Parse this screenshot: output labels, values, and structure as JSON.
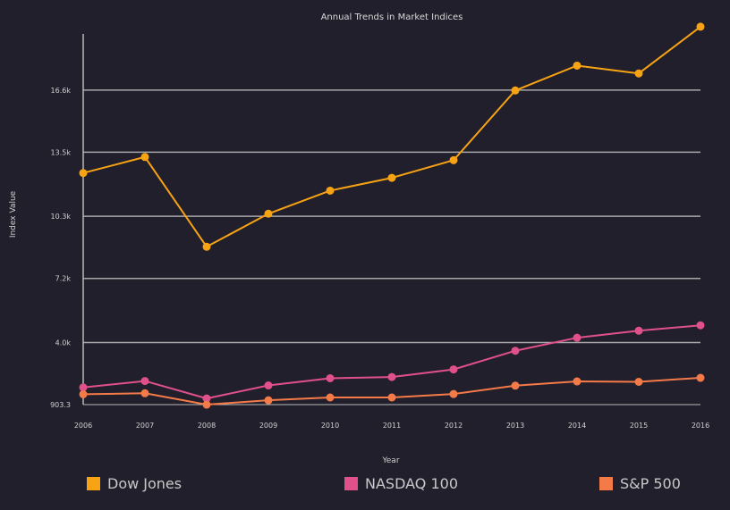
{
  "chart_data": {
    "type": "line",
    "title": "Annual Trends in Market Indices",
    "xlabel": "Year",
    "ylabel": "Index Value",
    "categories": [
      "2006",
      "2007",
      "2008",
      "2009",
      "2010",
      "2011",
      "2012",
      "2013",
      "2014",
      "2015",
      "2016"
    ],
    "yticks": [
      903.3,
      4000,
      7200,
      10300,
      13500,
      16600
    ],
    "ytick_labels": [
      "903.3",
      "4.0k",
      "7.2k",
      "10.3k",
      "13.5k",
      "16.6k"
    ],
    "ylim": [
      903.3,
      19400
    ],
    "grid": true,
    "legend_position": "bottom",
    "series": [
      {
        "name": "Dow Jones",
        "color": "#f7a313",
        "values": [
          12460,
          13260,
          8780,
          10430,
          11580,
          12220,
          13100,
          16580,
          17820,
          17430,
          19760
        ]
      },
      {
        "name": "NASDAQ 100",
        "color": "#e0508a",
        "values": [
          1760,
          2080,
          1210,
          1860,
          2220,
          2280,
          2660,
          3590,
          4240,
          4590,
          4860
        ]
      },
      {
        "name": "S&P 500",
        "color": "#f47a48",
        "values": [
          1420,
          1470,
          903,
          1120,
          1260,
          1260,
          1430,
          1850,
          2060,
          2040,
          2240
        ]
      }
    ]
  }
}
